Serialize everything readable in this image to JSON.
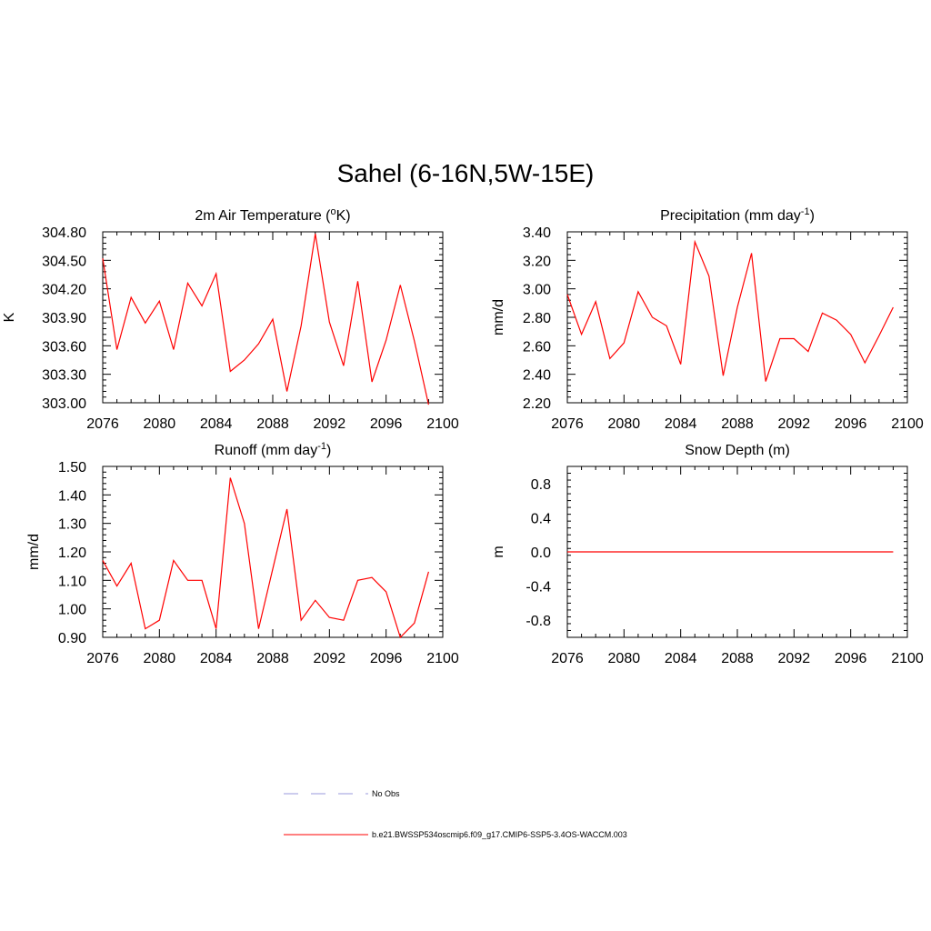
{
  "title": "Sahel (6-16N,5W-15E)",
  "colors": {
    "series": "#ff0000",
    "obs": "#9999dd",
    "axis": "#000000"
  },
  "legend": {
    "obs_label": "No Obs",
    "model_label": "b.e21.BWSSP534oscmip6.f09_g17.CMIP6-SSP5-3.4OS-WACCM.003"
  },
  "chart_data": [
    {
      "type": "line",
      "title_main": "2m Air Temperature (",
      "title_sup": "o",
      "title_tail": "K)",
      "ylabel": "K",
      "xlim": [
        2076,
        2100
      ],
      "ylim": [
        303.0,
        304.8
      ],
      "xticks": [
        2076,
        2080,
        2084,
        2088,
        2092,
        2096,
        2100
      ],
      "xtick_labels": [
        "2076",
        "2080",
        "2084",
        "2088",
        "2092",
        "2096",
        "2100"
      ],
      "yticks": [
        303.0,
        303.3,
        303.6,
        303.9,
        304.2,
        304.5,
        304.8
      ],
      "ytick_labels": [
        "303.00",
        "303.30",
        "303.60",
        "303.90",
        "304.20",
        "304.50",
        "304.80"
      ],
      "x": [
        2076,
        2077,
        2078,
        2079,
        2080,
        2081,
        2082,
        2083,
        2084,
        2085,
        2086,
        2087,
        2088,
        2089,
        2090,
        2091,
        2092,
        2093,
        2094,
        2095,
        2096,
        2097,
        2098,
        2099
      ],
      "values": [
        304.52,
        303.56,
        304.11,
        303.84,
        304.07,
        303.56,
        304.26,
        304.02,
        304.36,
        303.33,
        303.45,
        303.62,
        303.88,
        303.12,
        303.81,
        304.78,
        303.85,
        303.39,
        304.28,
        303.22,
        303.66,
        304.24,
        303.65,
        302.98
      ]
    },
    {
      "type": "line",
      "title_main": "Precipitation (mm day",
      "title_sup": "-1",
      "title_tail": ")",
      "ylabel": "mm/d",
      "xlim": [
        2076,
        2100
      ],
      "ylim": [
        2.2,
        3.4
      ],
      "xticks": [
        2076,
        2080,
        2084,
        2088,
        2092,
        2096,
        2100
      ],
      "xtick_labels": [
        "2076",
        "2080",
        "2084",
        "2088",
        "2092",
        "2096",
        "2100"
      ],
      "yticks": [
        2.2,
        2.4,
        2.6,
        2.8,
        3.0,
        3.2,
        3.4
      ],
      "ytick_labels": [
        "2.20",
        "2.40",
        "2.60",
        "2.80",
        "3.00",
        "3.20",
        "3.40"
      ],
      "x": [
        2076,
        2077,
        2078,
        2079,
        2080,
        2081,
        2082,
        2083,
        2084,
        2085,
        2086,
        2087,
        2088,
        2089,
        2090,
        2091,
        2092,
        2093,
        2094,
        2095,
        2096,
        2097,
        2098,
        2099
      ],
      "values": [
        2.96,
        2.68,
        2.91,
        2.51,
        2.62,
        2.98,
        2.8,
        2.74,
        2.47,
        3.33,
        3.09,
        2.39,
        2.87,
        3.25,
        2.35,
        2.65,
        2.65,
        2.56,
        2.83,
        2.78,
        2.68,
        2.48,
        2.67,
        2.87
      ]
    },
    {
      "type": "line",
      "title_main": "Runoff (mm day",
      "title_sup": "-1",
      "title_tail": ")",
      "ylabel": "mm/d",
      "xlim": [
        2076,
        2100
      ],
      "ylim": [
        0.9,
        1.5
      ],
      "xticks": [
        2076,
        2080,
        2084,
        2088,
        2092,
        2096,
        2100
      ],
      "xtick_labels": [
        "2076",
        "2080",
        "2084",
        "2088",
        "2092",
        "2096",
        "2100"
      ],
      "yticks": [
        0.9,
        1.0,
        1.1,
        1.2,
        1.3,
        1.4,
        1.5
      ],
      "ytick_labels": [
        "0.90",
        "1.00",
        "1.10",
        "1.20",
        "1.30",
        "1.40",
        "1.50"
      ],
      "x": [
        2076,
        2077,
        2078,
        2079,
        2080,
        2081,
        2082,
        2083,
        2084,
        2085,
        2086,
        2087,
        2088,
        2089,
        2090,
        2091,
        2092,
        2093,
        2094,
        2095,
        2096,
        2097,
        2098,
        2099
      ],
      "values": [
        1.17,
        1.08,
        1.16,
        0.93,
        0.96,
        1.17,
        1.1,
        1.1,
        0.93,
        1.46,
        1.3,
        0.93,
        1.14,
        1.35,
        0.96,
        1.03,
        0.97,
        0.96,
        1.1,
        1.11,
        1.06,
        0.9,
        0.95,
        1.13
      ]
    },
    {
      "type": "line",
      "title_main": "Snow Depth (m)",
      "title_sup": "",
      "title_tail": "",
      "ylabel": "m",
      "xlim": [
        2076,
        2100
      ],
      "ylim": [
        -1.0,
        1.0
      ],
      "xticks": [
        2076,
        2080,
        2084,
        2088,
        2092,
        2096,
        2100
      ],
      "xtick_labels": [
        "2076",
        "2080",
        "2084",
        "2088",
        "2092",
        "2096",
        "2100"
      ],
      "yticks": [
        -0.8,
        -0.4,
        0.0,
        0.4,
        0.8
      ],
      "ytick_labels": [
        "-0.8",
        "-0.4",
        "0.0",
        "0.4",
        "0.8"
      ],
      "x": [
        2076,
        2077,
        2078,
        2079,
        2080,
        2081,
        2082,
        2083,
        2084,
        2085,
        2086,
        2087,
        2088,
        2089,
        2090,
        2091,
        2092,
        2093,
        2094,
        2095,
        2096,
        2097,
        2098,
        2099
      ],
      "values": [
        0,
        0,
        0,
        0,
        0,
        0,
        0,
        0,
        0,
        0,
        0,
        0,
        0,
        0,
        0,
        0,
        0,
        0,
        0,
        0,
        0,
        0,
        0,
        0
      ]
    }
  ]
}
